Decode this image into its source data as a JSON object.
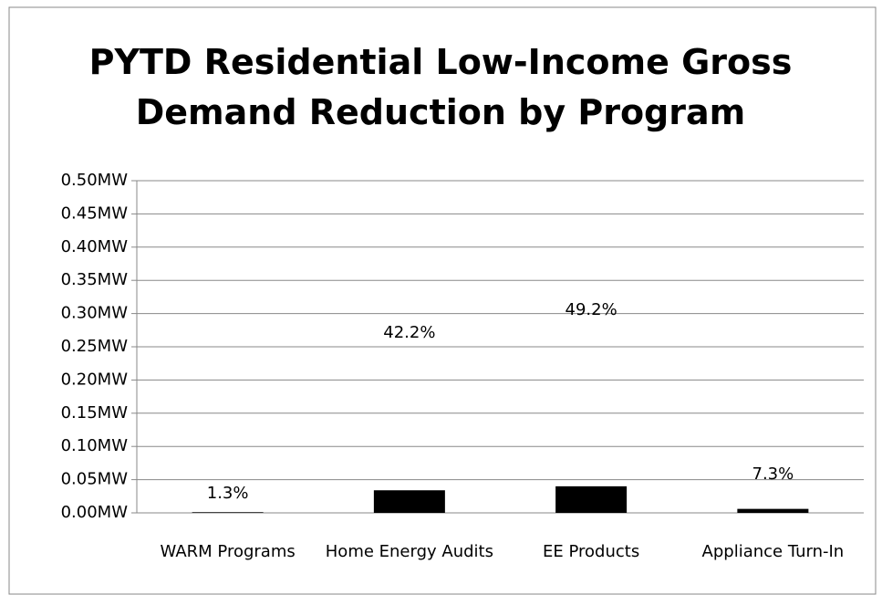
{
  "chart_data": {
    "type": "bar",
    "title": "PYTD Residential Low-Income Gross Demand Reduction by Program",
    "categories": [
      "WARM Programs",
      "Home Energy Audits",
      "EE Products",
      "Appliance Turn-In"
    ],
    "values": [
      0.001,
      0.034,
      0.04,
      0.006
    ],
    "data_labels": [
      "1.3%",
      "42.2%",
      "49.2%",
      "7.3%"
    ],
    "color": "#000000",
    "ylim": [
      0,
      0.5
    ],
    "yticks": [
      {
        "value": 0,
        "label": "0.00MW"
      },
      {
        "value": 0.05,
        "label": "0.05MW"
      },
      {
        "value": 0.1,
        "label": "0.10MW"
      },
      {
        "value": 0.15,
        "label": "0.15MW"
      },
      {
        "value": 0.2,
        "label": "0.20MW"
      },
      {
        "value": 0.25,
        "label": "0.25MW"
      },
      {
        "value": 0.3,
        "label": "0.30MW"
      },
      {
        "value": 0.35,
        "label": "0.35MW"
      },
      {
        "value": 0.4,
        "label": "0.40MW"
      },
      {
        "value": 0.45,
        "label": "0.45MW"
      },
      {
        "value": 0.5,
        "label": "0.50MW"
      }
    ],
    "grid": true
  }
}
